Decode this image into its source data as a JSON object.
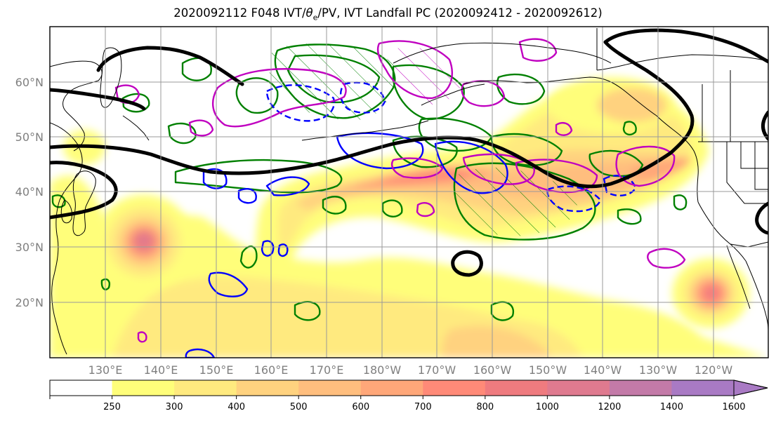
{
  "map": {
    "title_pre": "2020092112 F048 IVT/",
    "title_theta": "θ",
    "title_sub": "e",
    "title_post": "/PV, IVT Landfall PC (2020092412 - 2020092612)",
    "lat_labels": [
      "60°N",
      "50°N",
      "40°N",
      "30°N",
      "20°N"
    ],
    "lon_labels": [
      "130°E",
      "140°E",
      "150°E",
      "160°E",
      "170°E",
      "180°W",
      "170°W",
      "160°W",
      "150°W",
      "140°W",
      "130°W",
      "120°W"
    ],
    "colors": {
      "gridline": "#9a9a9a",
      "label": "#7f7f7f",
      "ivt_contour": "#000000",
      "theta_e_contour": "#0000ff",
      "pv_contour": "#008000",
      "pc_contour": "#c000c0"
    }
  },
  "colorbar": {
    "ticks": [
      "250",
      "300",
      "400",
      "500",
      "600",
      "700",
      "800",
      "1000",
      "1200",
      "1400",
      "1600"
    ],
    "colors": [
      "#ffffff",
      "#fffe7a",
      "#ffea7f",
      "#ffd27f",
      "#ffbe7e",
      "#ffa779",
      "#ff8a78",
      "#ef7b7f",
      "#df7a8f",
      "#c37aa8",
      "#a97ac4"
    ]
  }
}
